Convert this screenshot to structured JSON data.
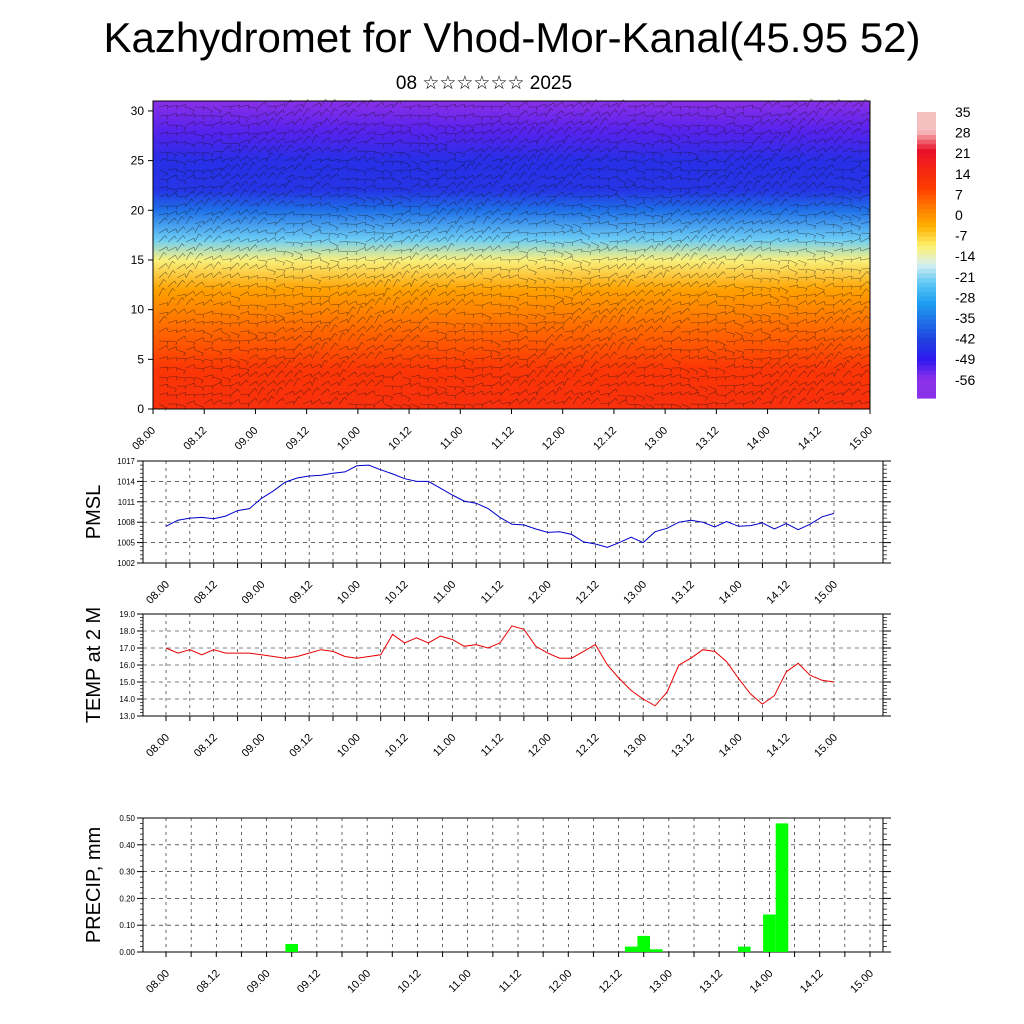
{
  "title": "Kazhydromet for Vhod-Mor-Kanal(45.95 52)",
  "subtitle": "08 ☆☆☆☆☆☆ 2025",
  "chart_data": [
    {
      "type": "heatmap",
      "name": "temperature-cross-section",
      "x_ticks": [
        "08.00",
        "08.12",
        "09.00",
        "09.12",
        "10.00",
        "10.12",
        "11.00",
        "11.12",
        "12.00",
        "12.12",
        "13.00",
        "13.12",
        "14.00",
        "14.12",
        "15.00"
      ],
      "y_ticks": [
        0,
        5,
        10,
        15,
        20,
        25,
        30
      ],
      "ylim": [
        0,
        31
      ],
      "colorbar_labels": [
        35,
        28,
        21,
        14,
        7,
        0,
        -7,
        -14,
        -21,
        -28,
        -35,
        -42,
        -49,
        -56
      ],
      "colorscale_stops": [
        {
          "v": 35,
          "color": "#f5c0c0"
        },
        {
          "v": 28,
          "color": "#e8102a"
        },
        {
          "v": 14,
          "color": "#ff3c00"
        },
        {
          "v": 7,
          "color": "#ff7a00"
        },
        {
          "v": 0,
          "color": "#ffb000"
        },
        {
          "v": -7,
          "color": "#fff06a"
        },
        {
          "v": -14,
          "color": "#d8f0f0"
        },
        {
          "v": -21,
          "color": "#5cc8f5"
        },
        {
          "v": -28,
          "color": "#1ea0f0"
        },
        {
          "v": -42,
          "color": "#2040e0"
        },
        {
          "v": -49,
          "color": "#3018f0"
        },
        {
          "v": -56,
          "color": "#8a30e8"
        }
      ],
      "vertical_profile": [
        {
          "y": 0,
          "t": 18
        },
        {
          "y": 4,
          "t": 16
        },
        {
          "y": 8,
          "t": 9
        },
        {
          "y": 12,
          "t": 2
        },
        {
          "y": 15,
          "t": -8
        },
        {
          "y": 17,
          "t": -20
        },
        {
          "y": 20,
          "t": -35
        },
        {
          "y": 22,
          "t": -44
        },
        {
          "y": 25,
          "t": -45
        },
        {
          "y": 28,
          "t": -52
        },
        {
          "y": 31,
          "t": -58
        }
      ]
    },
    {
      "type": "line",
      "name": "pmsl",
      "ylabel": "PMSL",
      "x_ticks": [
        "08.00",
        "08.12",
        "09.00",
        "09.12",
        "10.00",
        "10.12",
        "11.00",
        "11.12",
        "12.00",
        "12.12",
        "13.00",
        "13.12",
        "14.00",
        "14.12",
        "15.00"
      ],
      "y_ticks": [
        1002,
        1005,
        1008,
        1011,
        1014,
        1017
      ],
      "ylim": [
        1002,
        1017
      ],
      "color": "#0000cc",
      "series": [
        {
          "x": [
            0,
            3,
            6,
            9,
            12,
            15,
            18,
            21,
            24,
            27,
            30,
            33,
            36,
            39,
            42,
            45,
            48,
            51,
            54,
            57,
            60,
            63,
            66,
            69,
            72,
            75,
            78,
            81,
            84,
            87,
            90,
            93,
            96,
            99,
            102,
            105,
            108,
            111,
            114,
            117,
            120,
            123,
            126,
            129,
            132,
            135,
            138,
            141,
            144,
            147,
            150,
            153,
            156,
            159,
            162,
            165,
            168
          ],
          "values": [
            1007.4,
            1008.3,
            1008.6,
            1008.7,
            1008.5,
            1008.9,
            1009.7,
            1010.0,
            1011.5,
            1012.6,
            1013.9,
            1014.5,
            1014.8,
            1014.9,
            1015.2,
            1015.4,
            1016.3,
            1016.4,
            1015.7,
            1015.1,
            1014.4,
            1014.0,
            1014.0,
            1013.0,
            1012.0,
            1011.1,
            1010.8,
            1010.0,
            1008.7,
            1007.7,
            1007.6,
            1007.0,
            1006.5,
            1006.6,
            1006.2,
            1005.1,
            1004.8,
            1004.3,
            1005.0,
            1005.8,
            1005.0,
            1006.6,
            1007.1,
            1008.0,
            1008.3,
            1008.0,
            1007.3,
            1008.1,
            1007.4,
            1007.5,
            1007.9,
            1007.0,
            1007.8,
            1006.9,
            1007.7,
            1008.8,
            1009.3
          ]
        }
      ]
    },
    {
      "type": "line",
      "name": "temp-2m",
      "ylabel": "TEMP at 2 M",
      "x_ticks": [
        "08.00",
        "08.12",
        "09.00",
        "09.12",
        "10.00",
        "10.12",
        "11.00",
        "11.12",
        "12.00",
        "12.12",
        "13.00",
        "13.12",
        "14.00",
        "14.12",
        "15.00"
      ],
      "y_ticks": [
        "13.0",
        "14.0",
        "15.0",
        "16.0",
        "17.0",
        "18.0",
        "19.0"
      ],
      "ylim": [
        13,
        19
      ],
      "color": "#e80000",
      "series": [
        {
          "x": [
            0,
            3,
            6,
            9,
            12,
            15,
            18,
            21,
            24,
            27,
            30,
            33,
            36,
            39,
            42,
            45,
            48,
            51,
            54,
            57,
            60,
            63,
            66,
            69,
            72,
            75,
            78,
            81,
            84,
            87,
            90,
            93,
            96,
            99,
            102,
            105,
            108,
            111,
            114,
            117,
            120,
            123,
            126,
            129,
            132,
            135,
            138,
            141,
            144,
            147,
            150,
            153,
            156,
            159,
            162,
            165,
            168
          ],
          "values": [
            17.0,
            16.7,
            16.9,
            16.6,
            16.9,
            16.7,
            16.7,
            16.7,
            16.6,
            16.5,
            16.4,
            16.5,
            16.7,
            16.9,
            16.8,
            16.5,
            16.4,
            16.5,
            16.6,
            17.8,
            17.3,
            17.6,
            17.3,
            17.7,
            17.5,
            17.1,
            17.2,
            17.0,
            17.3,
            18.3,
            18.1,
            17.1,
            16.7,
            16.4,
            16.4,
            16.8,
            17.2,
            16.0,
            15.2,
            14.5,
            14.0,
            13.6,
            14.4,
            16.0,
            16.4,
            16.9,
            16.8,
            16.2,
            15.2,
            14.3,
            13.7,
            14.2,
            15.6,
            16.1,
            15.4,
            15.1,
            15.0
          ]
        }
      ]
    },
    {
      "type": "bar",
      "name": "precip",
      "ylabel": "PRECIP, mm",
      "x_ticks": [
        "08.00",
        "08.12",
        "09.00",
        "09.12",
        "10.00",
        "10.12",
        "11.00",
        "11.12",
        "12.00",
        "12.12",
        "13.00",
        "13.12",
        "14.00",
        "14.12",
        "15.00"
      ],
      "y_ticks": [
        "0.00",
        "0.10",
        "0.20",
        "0.30",
        "0.40",
        "0.50"
      ],
      "ylim": [
        0,
        0.5
      ],
      "color": "#00ff00",
      "bars": [
        {
          "x": 30,
          "value": 0.03
        },
        {
          "x": 111,
          "value": 0.02
        },
        {
          "x": 114,
          "value": 0.06
        },
        {
          "x": 117,
          "value": 0.01
        },
        {
          "x": 138,
          "value": 0.02
        },
        {
          "x": 144,
          "value": 0.14
        },
        {
          "x": 147,
          "value": 0.48
        }
      ]
    }
  ]
}
